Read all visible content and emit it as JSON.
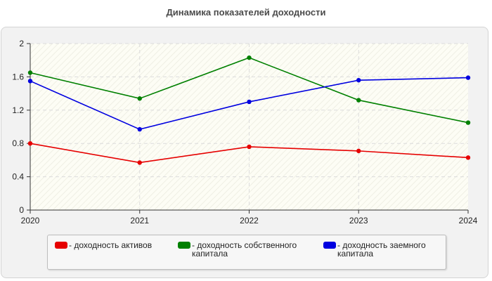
{
  "chart_data": {
    "type": "line",
    "title": "Динамика показателей доходности",
    "xlabel": "",
    "ylabel": "",
    "categories": [
      "2020",
      "2021",
      "2022",
      "2023",
      "2024"
    ],
    "ylim": [
      0,
      2
    ],
    "yticks": [
      "0",
      "0.4",
      "0.8",
      "1.2",
      "1.6",
      "2"
    ],
    "grid": true,
    "legend_position": "bottom",
    "series": [
      {
        "name": "- доходность активов",
        "color": "#e60000",
        "values": [
          0.8,
          0.57,
          0.76,
          0.71,
          0.63
        ]
      },
      {
        "name": "- доходность собственного\nкапитала",
        "color": "#008000",
        "values": [
          1.65,
          1.34,
          1.83,
          1.32,
          1.05
        ]
      },
      {
        "name": "- доходность заемного\nкапитала",
        "color": "#0000e0",
        "values": [
          1.55,
          0.97,
          1.3,
          1.56,
          1.59
        ]
      }
    ]
  }
}
